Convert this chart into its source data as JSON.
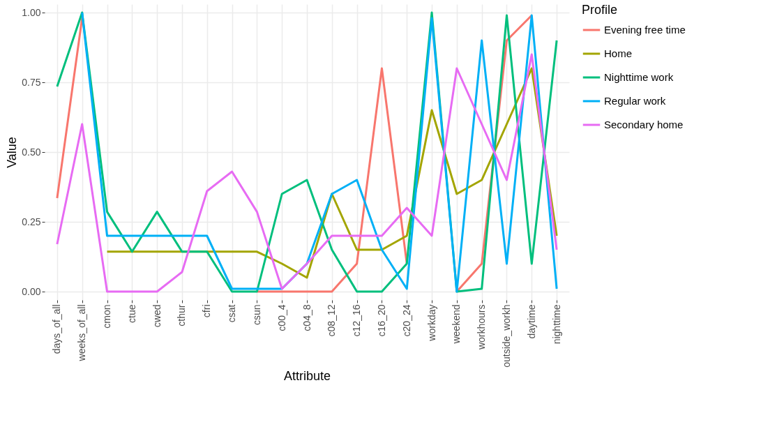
{
  "chart_data": {
    "type": "line",
    "xlabel": "Attribute",
    "ylabel": "Value",
    "legend_title": "Profile",
    "legend": "right",
    "grid": true,
    "line_style": "solid",
    "marker": "none",
    "categories": [
      "days_of_all",
      "weeks_of_all",
      "cmon",
      "ctue",
      "cwed",
      "cthur",
      "cfri",
      "csat",
      "csun",
      "c00_4",
      "c04_8",
      "c08_12",
      "c12_16",
      "c16_20",
      "c20_24",
      "workday",
      "weekend",
      "workhours",
      "outside_workh",
      "daytime",
      "nighttime"
    ],
    "ylim": [
      -0.03,
      1.03
    ],
    "yticks": [
      {
        "value": 0,
        "label": "0.00"
      },
      {
        "value": 0.25,
        "label": "0.25"
      },
      {
        "value": 0.5,
        "label": "0.50"
      },
      {
        "value": 0.75,
        "label": "0.75"
      },
      {
        "value": 1,
        "label": "1.00"
      }
    ],
    "series": [
      {
        "name": "Evening free time",
        "color": "#f8766d",
        "values": [
          0.335,
          0.98,
          null,
          null,
          null,
          null,
          null,
          null,
          0,
          0,
          0,
          0,
          0.1,
          0.8,
          0.1,
          null,
          0,
          0.1,
          0.9,
          0.99,
          null
        ]
      },
      {
        "name": "Home",
        "color": "#a3a500",
        "values": [
          null,
          null,
          0.143,
          0.143,
          0.143,
          0.143,
          0.143,
          0.143,
          0.143,
          0.1,
          0.05,
          0.35,
          0.15,
          0.15,
          0.2,
          0.65,
          0.35,
          0.4,
          0.6,
          0.8,
          0.2
        ]
      },
      {
        "name": "Nighttime work",
        "color": "#00bf7d",
        "values": [
          0.735,
          1.0,
          0.286,
          0.143,
          0.286,
          0.143,
          0.143,
          0,
          0,
          0.35,
          0.4,
          0.15,
          0,
          0,
          0.1,
          1.0,
          0,
          0.01,
          0.99,
          0.1,
          0.9
        ]
      },
      {
        "name": "Regular work",
        "color": "#00b0f6",
        "values": [
          null,
          1.0,
          0.2,
          0.2,
          0.2,
          0.2,
          0.2,
          0.01,
          0.01,
          0.01,
          0.1,
          0.35,
          0.4,
          0.15,
          0.01,
          0.98,
          0,
          0.9,
          0.1,
          0.99,
          0.01
        ]
      },
      {
        "name": "Secondary home",
        "color": "#e76bf3",
        "values": [
          0.17,
          0.6,
          0,
          0,
          0,
          0.07,
          0.36,
          0.43,
          0.286,
          0.01,
          0.1,
          0.2,
          0.2,
          0.2,
          0.3,
          0.2,
          0.8,
          0.6,
          0.4,
          0.85,
          0.15
        ]
      }
    ]
  }
}
